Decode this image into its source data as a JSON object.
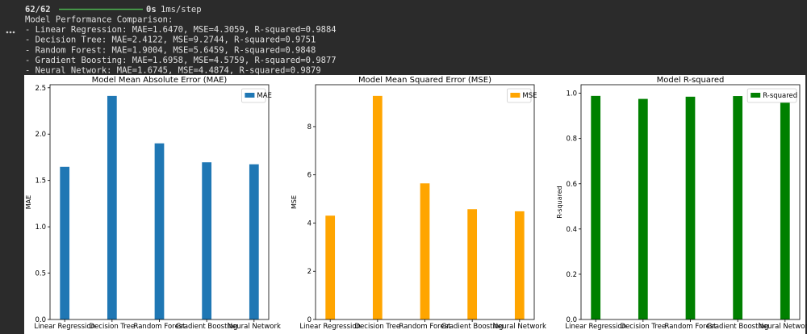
{
  "output": {
    "progress": {
      "count": "62/62",
      "time": "0s",
      "rate": "1ms/step"
    },
    "lines": [
      "Model Performance Comparison:",
      "- Linear Regression: MAE=1.6470, MSE=4.3059, R-squared=0.9884",
      "- Decision Tree: MAE=2.4122, MSE=9.2744, R-squared=0.9751",
      "- Random Forest: MAE=1.9004, MSE=5.6459, R-squared=0.9848",
      "- Gradient Boosting: MAE=1.6958, MSE=4.5759, R-squared=0.9877",
      "- Neural Network: MAE=1.6745, MSE=4.4874, R-squared=0.9879"
    ]
  },
  "chart_data": [
    {
      "type": "bar",
      "title": "Model Mean Absolute Error (MAE)",
      "y_label": "MAE",
      "categories": [
        "Linear Regression",
        "Decision Tree",
        "Random Forest",
        "Gradient Boosting",
        "Neural Network"
      ],
      "series": [
        {
          "name": "MAE",
          "color": "#1f77b4",
          "values": [
            1.647,
            2.4122,
            1.9004,
            1.6958,
            1.6745
          ]
        }
      ],
      "ylim": [
        0,
        2.533
      ],
      "yticks": [
        {
          "value": 0,
          "label": "0.0"
        },
        0.5,
        {
          "value": 1,
          "label": "1.0"
        },
        1.5,
        {
          "value": 2,
          "label": "2.0"
        },
        2.5
      ],
      "legend": "upper right"
    },
    {
      "type": "bar",
      "title": "Model Mean Squared Error (MSE)",
      "y_label": "MSE",
      "categories": [
        "Linear Regression",
        "Decision Tree",
        "Random Forest",
        "Gradient Boosting",
        "Neural Network"
      ],
      "series": [
        {
          "name": "MSE",
          "color": "#ffa500",
          "values": [
            4.3059,
            9.2744,
            5.6459,
            4.5759,
            4.4874
          ]
        }
      ],
      "ylim": [
        0,
        9.738
      ],
      "yticks": [
        0,
        2,
        4,
        6,
        8
      ],
      "legend": "upper right"
    },
    {
      "type": "bar",
      "title": "Model R-squared",
      "y_label": "R-squared",
      "categories": [
        "Linear Regression",
        "Decision Tree",
        "Random Forest",
        "Gradient Boosting",
        "Neural Network"
      ],
      "series": [
        {
          "name": "R-squared",
          "color": "#008000",
          "values": [
            0.9884,
            0.9751,
            0.9848,
            0.9877,
            0.9879
          ]
        }
      ],
      "ylim": [
        0,
        1.0378
      ],
      "yticks": [
        {
          "value": 0,
          "label": "0.0"
        },
        0.2,
        0.4,
        0.6,
        0.8,
        {
          "value": 1,
          "label": "1.0"
        }
      ],
      "legend": "upper right"
    }
  ]
}
